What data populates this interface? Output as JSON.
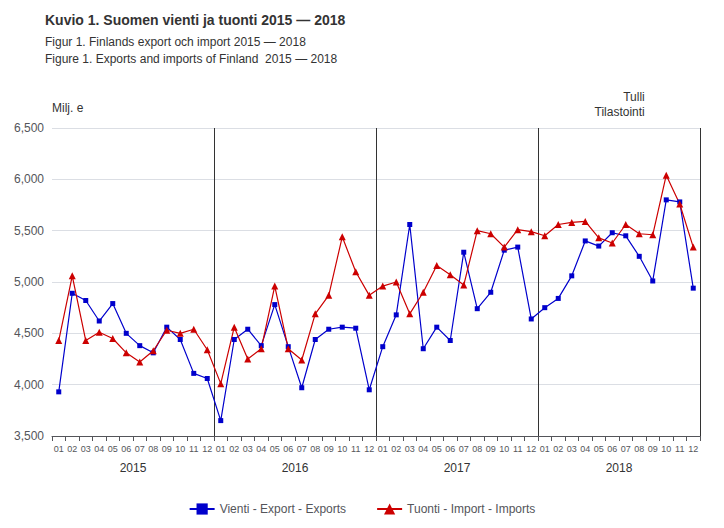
{
  "chart_data": {
    "type": "line",
    "title": "Kuvio 1. Suomen vienti ja tuonti 2015 — 2018",
    "subtitle": [
      "Figur 1. Finlands export och import 2015 — 2018",
      "Figure 1. Exports and imports of Finland  2015 — 2018"
    ],
    "ylabel": "Milj. e",
    "annotations": [
      "Tulli",
      "Tilastointi"
    ],
    "categories": [
      "01",
      "02",
      "03",
      "04",
      "05",
      "06",
      "07",
      "08",
      "09",
      "10",
      "11",
      "12",
      "01",
      "02",
      "03",
      "04",
      "05",
      "06",
      "07",
      "08",
      "09",
      "10",
      "11",
      "12",
      "01",
      "02",
      "03",
      "04",
      "05",
      "06",
      "07",
      "08",
      "09",
      "10",
      "11",
      "12",
      "01",
      "02",
      "03",
      "04",
      "05",
      "06",
      "07",
      "08",
      "09",
      "10",
      "11",
      "12"
    ],
    "category_groups": [
      "2015",
      "2016",
      "2017",
      "2018"
    ],
    "series": [
      {
        "name": "Vienti - Export - Exports",
        "color": "#0000cc",
        "marker": "square",
        "values": [
          3930,
          4890,
          4820,
          4620,
          4790,
          4500,
          4380,
          4310,
          4560,
          4440,
          4110,
          4060,
          3650,
          4440,
          4540,
          4380,
          4780,
          4370,
          3970,
          4440,
          4540,
          4560,
          4550,
          3950,
          4370,
          4680,
          5560,
          4350,
          4560,
          4430,
          5290,
          4740,
          4900,
          5310,
          5340,
          4640,
          4750,
          4840,
          5060,
          5400,
          5350,
          5480,
          5450,
          5250,
          5010,
          5800,
          5780,
          4940
        ]
      },
      {
        "name": "Tuonti - Import - Imports",
        "color": "#cc0000",
        "marker": "triangle",
        "values": [
          4430,
          5060,
          4430,
          4510,
          4450,
          4310,
          4220,
          4330,
          4530,
          4500,
          4540,
          4340,
          4010,
          4560,
          4250,
          4350,
          4960,
          4350,
          4240,
          4690,
          4870,
          5440,
          5100,
          4870,
          4960,
          5000,
          4690,
          4900,
          5160,
          5070,
          4970,
          5500,
          5470,
          5340,
          5510,
          5490,
          5450,
          5560,
          5580,
          5590,
          5430,
          5380,
          5560,
          5470,
          5460,
          6040,
          5760,
          5340
        ]
      }
    ],
    "ylim": [
      3500,
      6500
    ],
    "yticks": [
      3500,
      4000,
      4500,
      5000,
      5500,
      6000,
      6500
    ],
    "grid": true,
    "legend": "bottom"
  }
}
